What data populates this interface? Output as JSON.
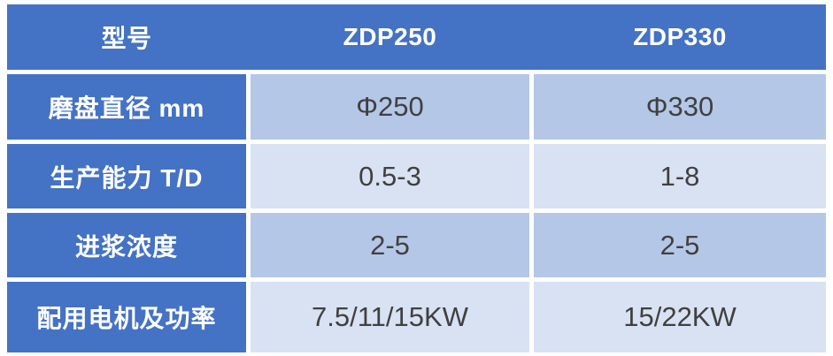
{
  "colors": {
    "accent_blue": "#4472C4",
    "band_medium": "#B4C7E7",
    "band_light": "#D9E2F3",
    "data_text": "#404040",
    "gap_white": "#FFFFFF",
    "header_text": "#FFFFFF"
  },
  "table": {
    "header": {
      "label": "型号",
      "model1": "ZDP250",
      "model2": "ZDP330"
    },
    "rows": [
      {
        "label": "磨盘直径 mm",
        "zdp250": "Φ250",
        "zdp330": "Φ330"
      },
      {
        "label": "生产能力 T/D",
        "zdp250": "0.5-3",
        "zdp330": "1-8"
      },
      {
        "label": "进浆浓度",
        "zdp250": "2-5",
        "zdp330": "2-5"
      },
      {
        "label": "配用电机及功率",
        "zdp250": "7.5/11/15KW",
        "zdp330": "15/22KW"
      }
    ]
  }
}
